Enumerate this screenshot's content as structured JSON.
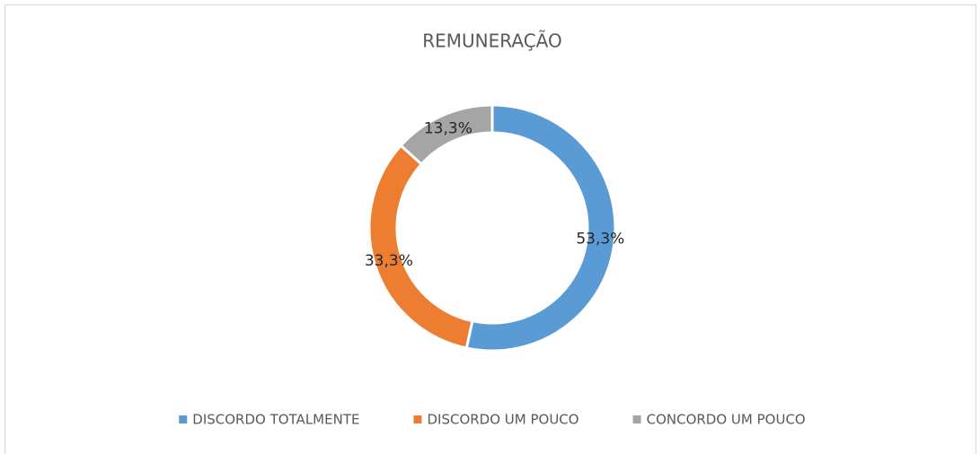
{
  "chart_data": {
    "type": "donut",
    "title": "REMUNERAÇÃO",
    "categories": [
      "DISCORDO TOTALMENTE",
      "DISCORDO UM POUCO",
      "CONCORDO UM POUCO"
    ],
    "values": [
      53.3,
      33.3,
      13.3
    ],
    "value_labels": [
      "53,3%",
      "33,3%",
      "13,3%"
    ],
    "colors": [
      "#5b9bd5",
      "#ed7d31",
      "#a5a5a5"
    ],
    "legend": "bottom"
  }
}
